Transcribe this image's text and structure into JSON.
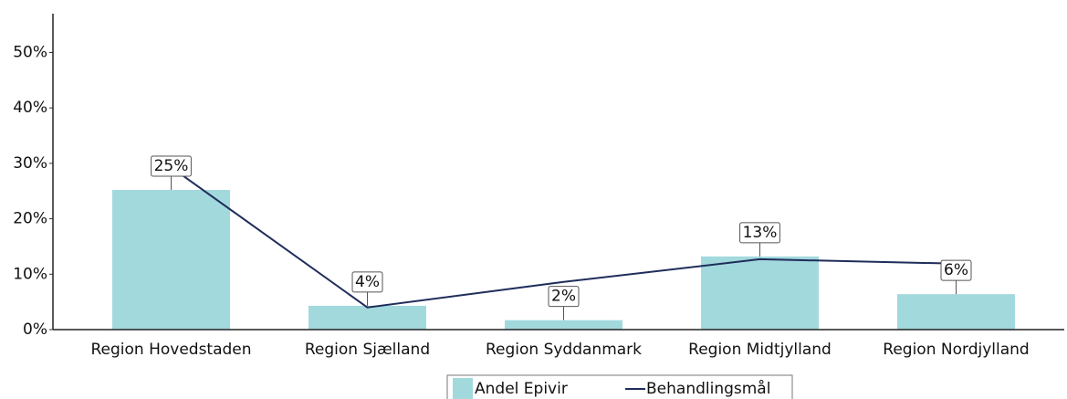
{
  "chart_data": {
    "type": "bar_line",
    "categories": [
      "Region Hovedstaden",
      "Region Sjælland",
      "Region Syddanmark",
      "Region Midtjylland",
      "Region Nordjylland"
    ],
    "series": [
      {
        "name": "Andel Epivir",
        "type": "bar",
        "color": "#a2d9dd",
        "values": [
          25.2,
          4.3,
          1.7,
          13.2,
          6.4
        ],
        "value_labels": [
          "25%",
          "4%",
          "2%",
          "13%",
          "6%"
        ]
      },
      {
        "name": "Behandlingsmål",
        "type": "line",
        "color": "#1f2d5a",
        "values": [
          29.3,
          4.0,
          8.6,
          12.7,
          11.9
        ]
      }
    ],
    "ylim": [
      0,
      57
    ],
    "yticks": [
      {
        "value": 0,
        "label": "0%"
      },
      {
        "value": 10,
        "label": "10%"
      },
      {
        "value": 20,
        "label": "20%"
      },
      {
        "value": 30,
        "label": "30%"
      },
      {
        "value": 40,
        "label": "40%"
      },
      {
        "value": 50,
        "label": "50%"
      }
    ],
    "legend": "bottom"
  }
}
